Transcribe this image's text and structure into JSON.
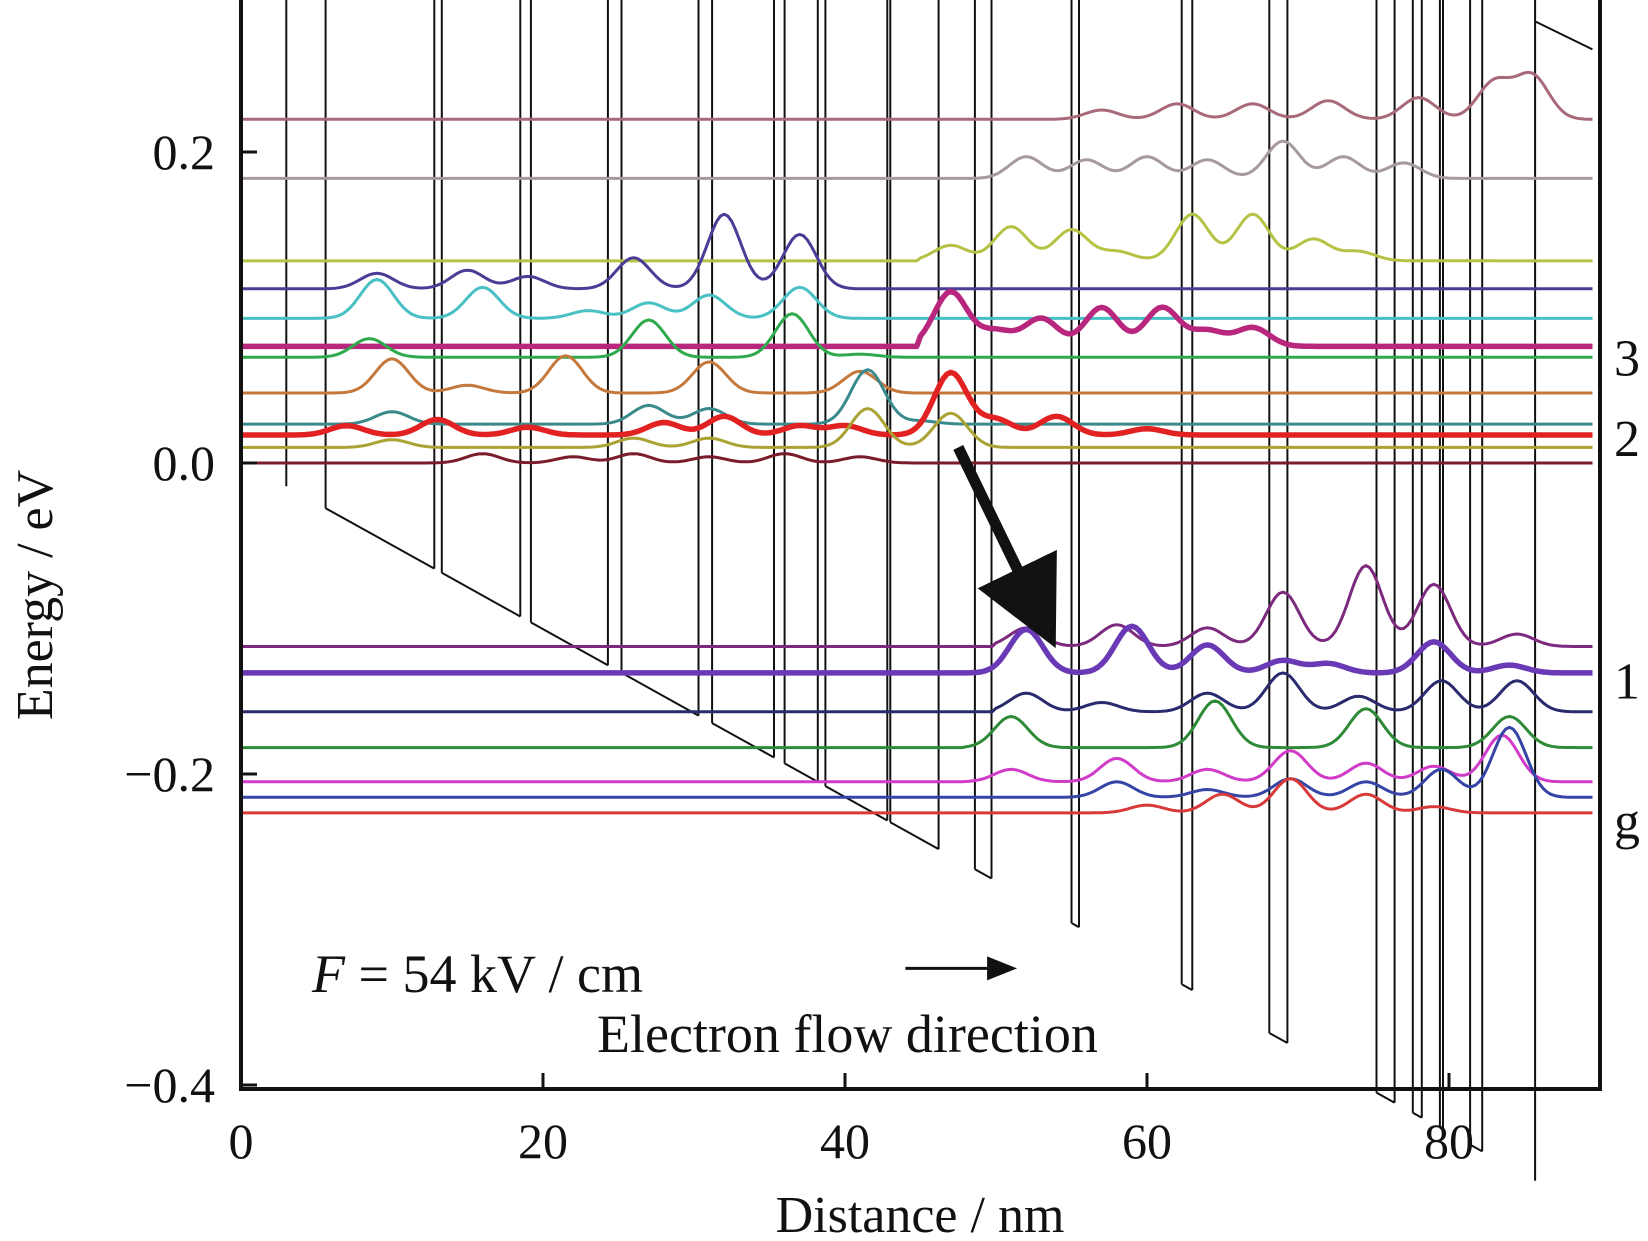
{
  "chart_data": {
    "type": "line",
    "xlabel": "Distance / nm",
    "ylabel": "Energy / eV",
    "xlim": [
      0,
      90
    ],
    "ylim": [
      -0.4,
      0.3
    ],
    "xticks": [
      0,
      20,
      40,
      60,
      80
    ],
    "yticks": [
      -0.4,
      -0.2,
      0.0,
      0.2
    ],
    "ytick_labels": [
      "−0.4",
      "−0.2",
      "0.0",
      "0.2"
    ],
    "grid": false,
    "conduction_band": {
      "color": "#111111",
      "slope_ev_per_nm": -0.0054,
      "barrier_height_ev": 0.3,
      "start_ev": -0.015,
      "layers_nm": [
        [
          3,
          5.6
        ],
        [
          12.8,
          13.3
        ],
        [
          18.5,
          19.2
        ],
        [
          24.3,
          25.2
        ],
        [
          30.3,
          31.2
        ],
        [
          35.3,
          36.0
        ],
        [
          38.2,
          38.7
        ],
        [
          42.8,
          43.0
        ],
        [
          46.2,
          48.6
        ],
        [
          49.7,
          55.0
        ],
        [
          55.5,
          62.3
        ],
        [
          63.0,
          68.1
        ],
        [
          69.3,
          75.2
        ],
        [
          76.4,
          77.6
        ],
        [
          78.2,
          79.4
        ],
        [
          79.6,
          81.4
        ],
        [
          82.2,
          85.7
        ]
      ]
    },
    "series": [
      {
        "energy": 0.221,
        "color": "#a86a78",
        "start_nm": 48,
        "peaks": [
          [
            57,
            0.006
          ],
          [
            62,
            0.01
          ],
          [
            67,
            0.01
          ],
          [
            72,
            0.012
          ],
          [
            78,
            0.014
          ],
          [
            83,
            0.024
          ],
          [
            85.5,
            0.028
          ]
        ]
      },
      {
        "energy": 0.183,
        "color": "#a69a9a",
        "start_nm": 48,
        "peaks": [
          [
            52,
            0.014
          ],
          [
            56,
            0.012
          ],
          [
            60,
            0.014
          ],
          [
            64,
            0.012
          ],
          [
            69,
            0.024
          ],
          [
            73,
            0.014
          ],
          [
            77,
            0.01
          ]
        ]
      },
      {
        "energy": 0.13,
        "color": "#b6c244",
        "start_nm": 45,
        "peaks": [
          [
            47,
            0.01
          ],
          [
            51,
            0.022
          ],
          [
            55,
            0.02
          ],
          [
            58,
            0.006
          ],
          [
            63,
            0.03
          ],
          [
            67,
            0.03
          ],
          [
            71,
            0.014
          ],
          [
            74,
            0.006
          ]
        ]
      },
      {
        "energy": 0.112,
        "color": "#4b3c96",
        "start_nm": 3,
        "peaks": [
          [
            9,
            0.01
          ],
          [
            15,
            0.012
          ],
          [
            19,
            0.008
          ],
          [
            26,
            0.02
          ],
          [
            32,
            0.048
          ],
          [
            37,
            0.035
          ]
        ]
      },
      {
        "energy": 0.093,
        "color": "#48c0c4",
        "start_nm": 0,
        "peaks": [
          [
            9,
            0.025
          ],
          [
            16,
            0.02
          ],
          [
            23,
            0.005
          ],
          [
            27,
            0.01
          ],
          [
            31,
            0.015
          ],
          [
            37,
            0.02
          ]
        ]
      },
      {
        "energy": 0.075,
        "color": "#b8267e",
        "start_nm": 45,
        "bold": true,
        "peaks": [
          [
            47,
            0.035
          ],
          [
            50,
            0.01
          ],
          [
            53,
            0.018
          ],
          [
            57,
            0.025
          ],
          [
            61,
            0.025
          ],
          [
            64,
            0.01
          ],
          [
            67,
            0.012
          ]
        ]
      },
      {
        "energy": 0.068,
        "color": "#2eaa4c",
        "start_nm": 5,
        "peaks": [
          [
            8.5,
            0.012
          ],
          [
            27,
            0.024
          ],
          [
            36.5,
            0.028
          ],
          [
            41,
            0.002
          ]
        ]
      },
      {
        "energy": 0.045,
        "color": "#c4783c",
        "start_nm": 3,
        "peaks": [
          [
            10,
            0.022
          ],
          [
            15,
            0.005
          ],
          [
            21.5,
            0.024
          ],
          [
            31,
            0.02
          ],
          [
            41,
            0.014
          ]
        ]
      },
      {
        "energy": 0.025,
        "color": "#3a8a8c",
        "start_nm": 3,
        "peaks": [
          [
            10,
            0.008
          ],
          [
            27,
            0.012
          ],
          [
            31,
            0.01
          ],
          [
            41.5,
            0.035
          ],
          [
            45,
            0.002
          ]
        ]
      },
      {
        "energy": 0.018,
        "color": "#e22222",
        "start_nm": 3,
        "bold": true,
        "peaks": [
          [
            7,
            0.006
          ],
          [
            13,
            0.01
          ],
          [
            19,
            0.005
          ],
          [
            28,
            0.008
          ],
          [
            32,
            0.012
          ],
          [
            37,
            0.006
          ],
          [
            40,
            0.006
          ],
          [
            47,
            0.04
          ],
          [
            50,
            0.01
          ],
          [
            54,
            0.012
          ],
          [
            60,
            0.004
          ]
        ]
      },
      {
        "energy": 0.01,
        "color": "#aaa232",
        "start_nm": 3,
        "peaks": [
          [
            10,
            0.005
          ],
          [
            26,
            0.006
          ],
          [
            31,
            0.006
          ],
          [
            41.5,
            0.025
          ],
          [
            47,
            0.022
          ]
        ]
      },
      {
        "energy": 0.0,
        "color": "#7a1c2a",
        "start_nm": 8,
        "peaks": [
          [
            16,
            0.006
          ],
          [
            22,
            0.004
          ],
          [
            26,
            0.006
          ],
          [
            31,
            0.004
          ],
          [
            36,
            0.006
          ],
          [
            41,
            0.004
          ]
        ]
      },
      {
        "energy": -0.118,
        "color": "#7c2a7e",
        "start_nm": 50,
        "peaks": [
          [
            52,
            0.012
          ],
          [
            58,
            0.014
          ],
          [
            64,
            0.012
          ],
          [
            69,
            0.035
          ],
          [
            74.5,
            0.052
          ],
          [
            79,
            0.04
          ],
          [
            84.5,
            0.008
          ]
        ]
      },
      {
        "energy": -0.135,
        "color": "#6a3ab6",
        "start_nm": 48,
        "bold": true,
        "peaks": [
          [
            52,
            0.028
          ],
          [
            59,
            0.03
          ],
          [
            64,
            0.018
          ],
          [
            69,
            0.008
          ],
          [
            72,
            0.006
          ],
          [
            79,
            0.02
          ],
          [
            84,
            0.005
          ]
        ]
      },
      {
        "energy": -0.16,
        "color": "#2a2a6e",
        "start_nm": 50,
        "peaks": [
          [
            52,
            0.012
          ],
          [
            57,
            0.006
          ],
          [
            64,
            0.012
          ],
          [
            69,
            0.025
          ],
          [
            74,
            0.01
          ],
          [
            79.5,
            0.02
          ],
          [
            84.5,
            0.02
          ]
        ]
      },
      {
        "energy": -0.183,
        "color": "#2e8a36",
        "start_nm": 48,
        "peaks": [
          [
            51,
            0.02
          ],
          [
            64.5,
            0.03
          ],
          [
            74.5,
            0.025
          ],
          [
            84,
            0.02
          ]
        ]
      },
      {
        "energy": -0.205,
        "color": "#d03cc8",
        "start_nm": 48,
        "peaks": [
          [
            51,
            0.008
          ],
          [
            58,
            0.015
          ],
          [
            64,
            0.008
          ],
          [
            69.5,
            0.02
          ],
          [
            74.5,
            0.012
          ],
          [
            79,
            0.01
          ],
          [
            83.5,
            0.03
          ]
        ]
      },
      {
        "energy": -0.215,
        "color": "#3644a6",
        "start_nm": 48,
        "peaks": [
          [
            58,
            0.01
          ],
          [
            64,
            0.005
          ],
          [
            69.5,
            0.012
          ],
          [
            74.5,
            0.01
          ],
          [
            79.5,
            0.018
          ],
          [
            84,
            0.045
          ]
        ]
      },
      {
        "energy": -0.225,
        "color": "#d83a3a",
        "start_nm": 55,
        "peaks": [
          [
            60,
            0.005
          ],
          [
            65,
            0.012
          ],
          [
            69.5,
            0.022
          ],
          [
            74.5,
            0.012
          ],
          [
            79,
            0.004
          ]
        ]
      }
    ],
    "level_labels": [
      {
        "label": "3",
        "energy": 0.068
      },
      {
        "label": "2",
        "energy": 0.016
      },
      {
        "label": "1",
        "energy": -0.14
      },
      {
        "label": "g",
        "energy": -0.23
      }
    ],
    "annotations": {
      "field_symbol": "F",
      "field_value": " = 54 kV / cm",
      "flow_label": "Electron flow direction",
      "transition_arrow": {
        "from": [
          47.5,
          0.01
        ],
        "to": [
          53,
          -0.1
        ]
      },
      "flow_arrow": {
        "from": [
          44,
          -0.325
        ],
        "to": [
          51,
          -0.325
        ]
      }
    }
  }
}
